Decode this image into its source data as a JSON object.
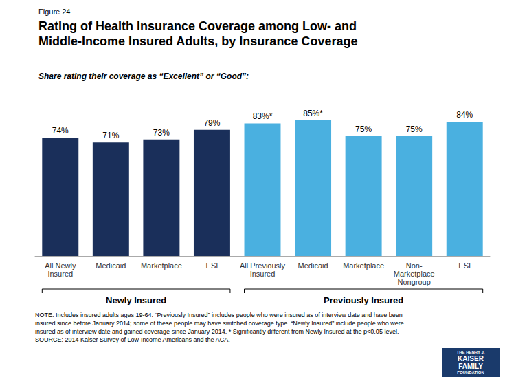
{
  "chart_data": {
    "type": "bar",
    "title": "Rating of Health Insurance Coverage among Low- and\nMiddle-Income Insured Adults, by Insurance Coverage",
    "subtitle": "Share rating their coverage as “Excellent” or “Good”:",
    "categories": [
      "All Newly\nInsured",
      "Medicaid",
      "Marketplace",
      "ESI",
      "All Previously\nInsured",
      "Medicaid",
      "Marketplace",
      "Non-\nMarketplace\nNongroup",
      "ESI"
    ],
    "values": [
      74,
      71,
      73,
      79,
      83,
      85,
      75,
      75,
      84
    ],
    "value_labels": [
      "74%",
      "71%",
      "73%",
      "79%",
      "83%*",
      "85%*",
      "75%",
      "75%",
      "84%"
    ],
    "colors": [
      "#1a2f5a",
      "#1a2f5a",
      "#1a2f5a",
      "#1a2f5a",
      "#4ab0e0",
      "#4ab0e0",
      "#4ab0e0",
      "#4ab0e0",
      "#4ab0e0"
    ],
    "ylim": [
      0,
      100
    ],
    "grid": false,
    "tick_labels": "x",
    "data_labels": true,
    "annotations": [
      "Figure 24",
      "Newly Insured",
      "Previously Insured",
      "NOTE: Includes insured adults ages 19-64. “Previously Insured” includes people who were insured as of interview date and have been\ninsured since before January 2014; some of these people may have switched coverage type. “Newly Insured” include people who were\ninsured as of interview date and gained coverage since January 2014. * Significantly different from Newly Insured at the p<0.05 level.\nSOURCE: 2014 Kaiser Survey of Low-Income Americans and the ACA.",
      "THE HENRY J.",
      "KAISER",
      "FAMILY",
      "FOUNDATION"
    ]
  }
}
